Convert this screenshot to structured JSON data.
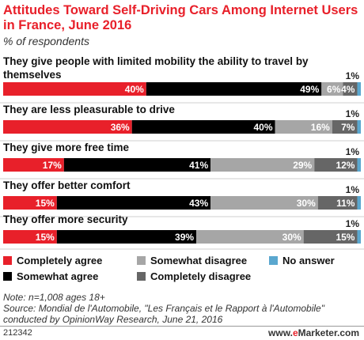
{
  "title": "Attitudes Toward Self-Driving Cars Among Internet Users in France, June 2016",
  "subtitle": "% of respondents",
  "colors": {
    "completely_agree": "#e8202a",
    "somewhat_agree": "#000000",
    "somewhat_disagree": "#a6a6a6",
    "completely_disagree": "#666666",
    "no_answer": "#5aa7cf"
  },
  "chart_data": {
    "type": "bar",
    "stacked": true,
    "orientation": "horizontal",
    "categories": [
      "They give people with limited mobility the ability to travel by themselves",
      "They are less pleasurable to drive",
      "They give more free time",
      "They offer better comfort",
      "They offer more security"
    ],
    "series": [
      {
        "name": "Completely agree",
        "values": [
          40,
          36,
          17,
          15,
          15
        ]
      },
      {
        "name": "Somewhat agree",
        "values": [
          49,
          40,
          41,
          43,
          39
        ]
      },
      {
        "name": "Somewhat disagree",
        "values": [
          6,
          16,
          29,
          30,
          30
        ]
      },
      {
        "name": "Completely disagree",
        "values": [
          4,
          7,
          12,
          11,
          15
        ]
      },
      {
        "name": "No answer",
        "values": [
          1,
          1,
          1,
          1,
          1
        ]
      }
    ],
    "legend_position": "bottom"
  },
  "footer": {
    "note": "Note: n=1,008 ages 18+",
    "source": "Source: Mondial de l'Automobile, \"Les Français et le Rapport à l'Automobile\" conducted by OpinionWay Research, June 21, 2016",
    "id": "212342",
    "brand_prefix": "www.",
    "brand_e": "e",
    "brand_suffix": "Marketer.com"
  }
}
